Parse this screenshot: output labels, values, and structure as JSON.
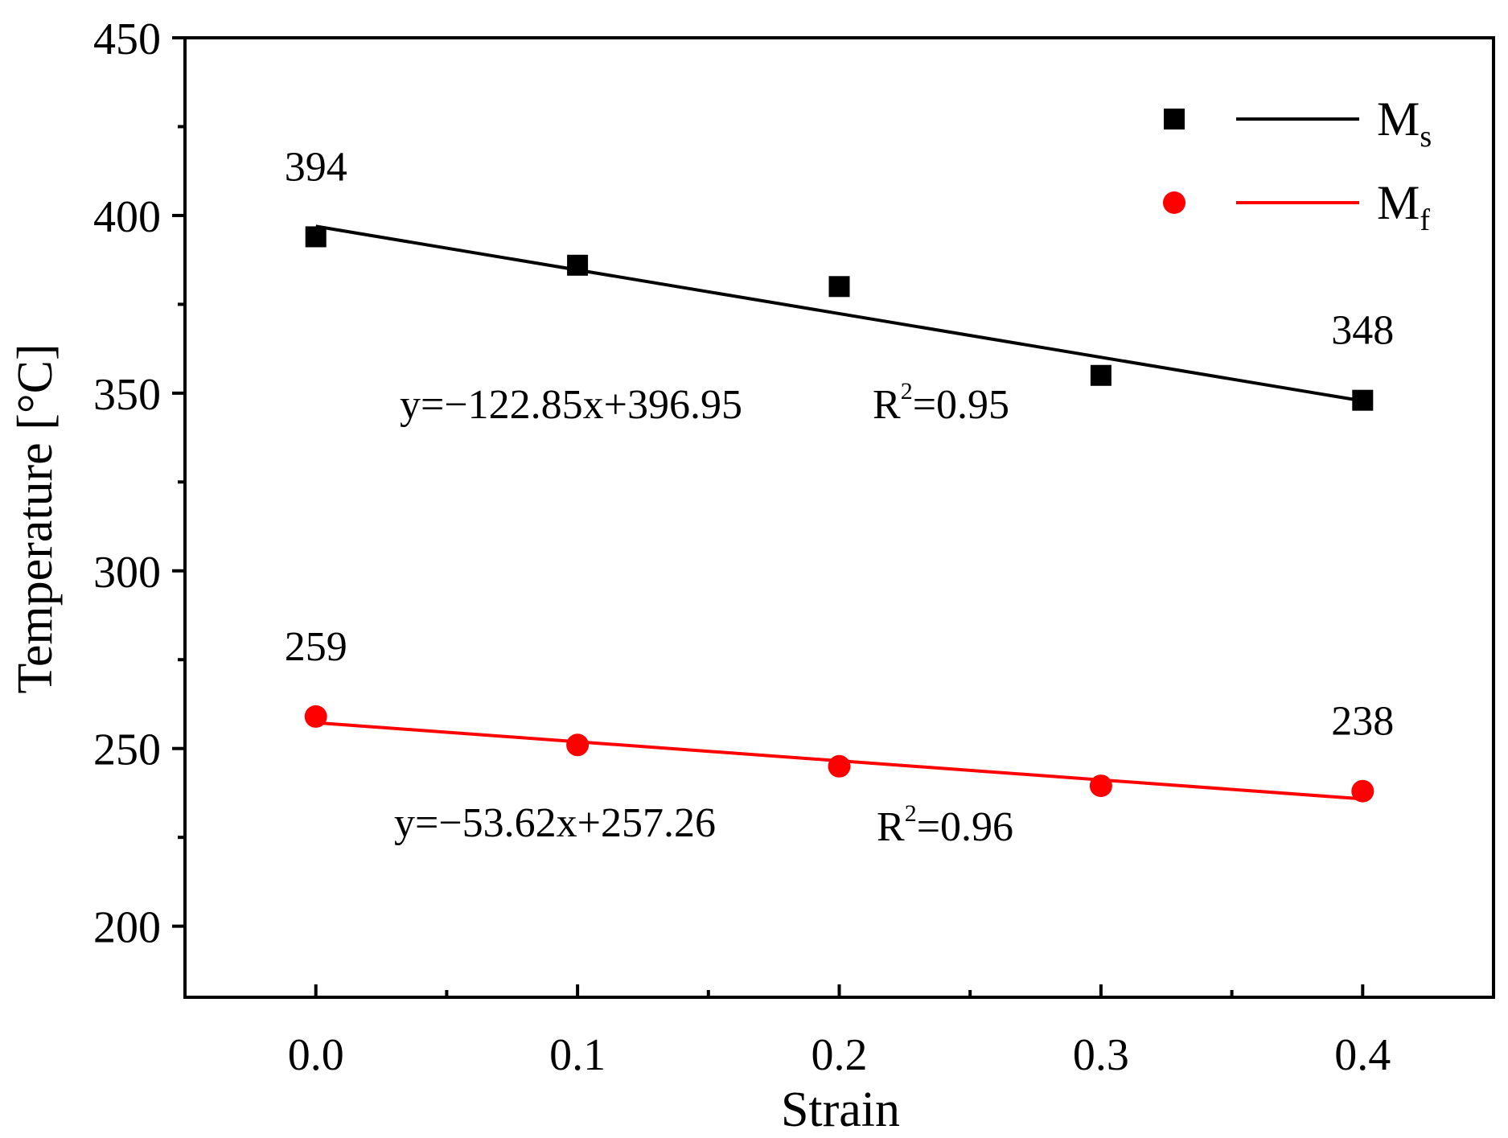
{
  "chart_data": {
    "type": "scatter",
    "title": "",
    "xlabel": "Strain",
    "ylabel": "Temperature [°C]",
    "xlim": [
      -0.05,
      0.45
    ],
    "ylim": [
      180,
      450
    ],
    "x_ticks": [
      0.0,
      0.1,
      0.2,
      0.3,
      0.4
    ],
    "x_tick_labels": [
      "0.0",
      "0.1",
      "0.2",
      "0.3",
      "0.4"
    ],
    "x_minor_ticks": [
      0.05,
      0.15,
      0.25,
      0.35
    ],
    "y_ticks": [
      200,
      250,
      300,
      350,
      400,
      450
    ],
    "y_tick_labels": [
      "200",
      "250",
      "300",
      "350",
      "400",
      "450"
    ],
    "y_minor_ticks": [
      225,
      275,
      325,
      375,
      425
    ],
    "grid": false,
    "legend_position": "top-right",
    "series": [
      {
        "name": "Ms",
        "legend_main": "M",
        "legend_sub": "s",
        "color": "#000000",
        "marker": "square",
        "x": [
          0.0,
          0.1,
          0.2,
          0.3,
          0.4
        ],
        "values": [
          394,
          386,
          380,
          355,
          348
        ],
        "fit": {
          "slope": -122.85,
          "intercept": 396.95
        },
        "equation": "y=−122.85x+396.95",
        "r2_label": "R",
        "r2_sup": "2",
        "r2_value": "=0.95",
        "point_labels": [
          {
            "x": 0.0,
            "text": "394"
          },
          {
            "x": 0.4,
            "text": "348"
          }
        ]
      },
      {
        "name": "Mf",
        "legend_main": "M",
        "legend_sub": "f",
        "color": "#ff0000",
        "marker": "circle",
        "x": [
          0.0,
          0.1,
          0.2,
          0.3,
          0.4
        ],
        "values": [
          259,
          251,
          245,
          239.5,
          238
        ],
        "fit": {
          "slope": -53.62,
          "intercept": 257.26
        },
        "equation": "y=−53.62x+257.26",
        "r2_label": "R",
        "r2_sup": "2",
        "r2_value": "=0.96",
        "point_labels": [
          {
            "x": 0.0,
            "text": "259"
          },
          {
            "x": 0.4,
            "text": "238"
          }
        ]
      }
    ]
  }
}
